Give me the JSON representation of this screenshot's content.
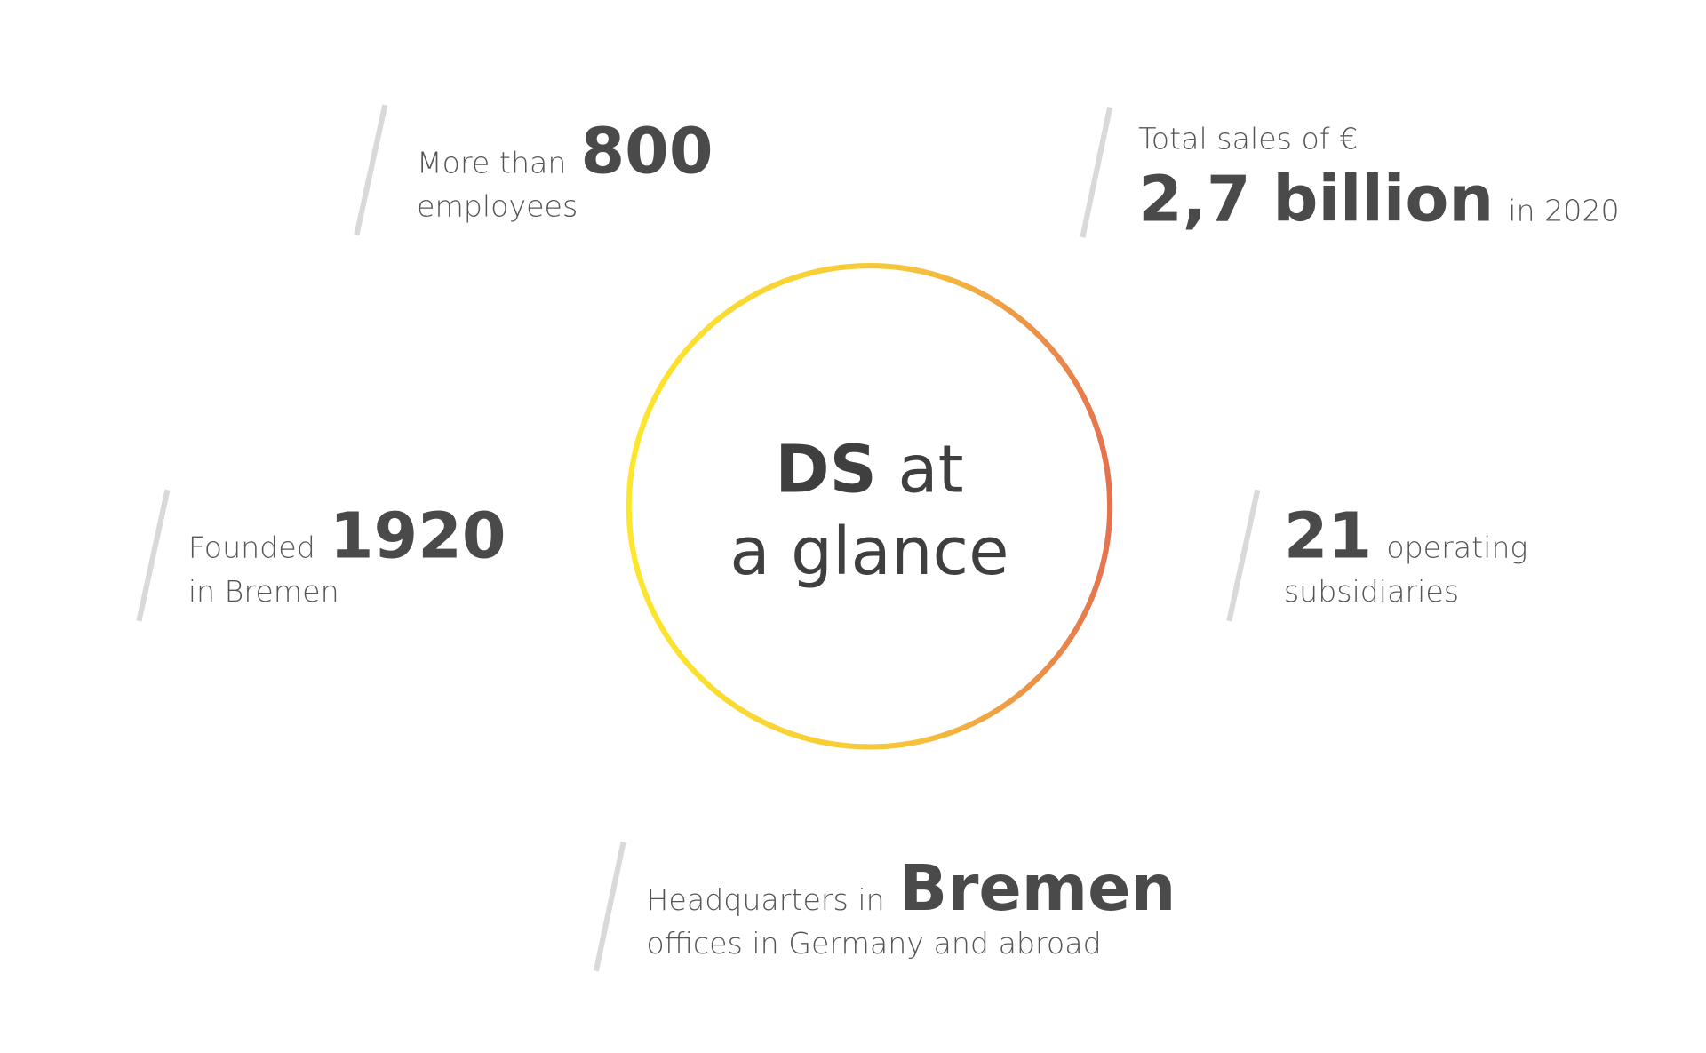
{
  "center": {
    "bold": "DS",
    "rest": "at",
    "line2": "a glance"
  },
  "facts": [
    {
      "pre": "More than",
      "highlight": "800",
      "line2": "employees"
    },
    {
      "pre": "Total sales of €",
      "highlight": "2,7 billion",
      "post": "in 2020"
    },
    {
      "pre": "Founded",
      "highlight": "1920",
      "line2": "in Bremen"
    },
    {
      "highlight": "21",
      "post": "operating",
      "line2": "subsidiaries"
    },
    {
      "pre": "Headquarters in",
      "highlight": "Bremen",
      "line2": "offices in Germany and abroad"
    }
  ]
}
